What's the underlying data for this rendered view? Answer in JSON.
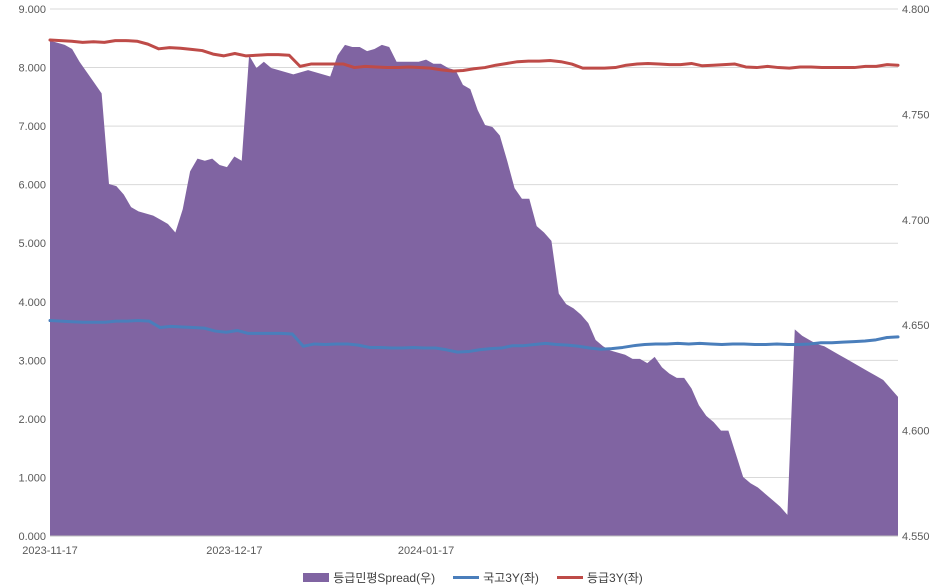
{
  "chart_data": {
    "type": "area+line",
    "title": "",
    "xlabel": "",
    "ylabel": "",
    "x_tick_labels": [
      "2023-11-17",
      "2023-12-17",
      "2024-01-17"
    ],
    "x_tick_index": [
      0,
      25,
      51
    ],
    "ylim_left": [
      0,
      9
    ],
    "left_ticks": [
      "0.000",
      "1.000",
      "2.000",
      "3.000",
      "4.000",
      "5.000",
      "6.000",
      "7.000",
      "8.000",
      "9.000"
    ],
    "ylim_right": [
      4.55,
      4.8
    ],
    "right_ticks": [
      "4.550",
      "4.600",
      "4.650",
      "4.700",
      "4.750",
      "4.800"
    ],
    "grid": "horizontal",
    "legend_position": "bottom",
    "series": [
      {
        "name": "등급민평Spread(우)",
        "kind": "area",
        "axis": "right",
        "color": "#8064a2",
        "values": [
          4.785,
          4.784,
          4.783,
          4.781,
          4.775,
          4.77,
          4.765,
          4.76,
          4.717,
          4.716,
          4.712,
          4.706,
          4.704,
          4.703,
          4.702,
          4.7,
          4.698,
          4.694,
          4.705,
          4.723,
          4.729,
          4.728,
          4.729,
          4.726,
          4.725,
          4.73,
          4.728,
          4.778,
          4.772,
          4.775,
          4.772,
          4.771,
          4.77,
          4.769,
          4.77,
          4.771,
          4.77,
          4.769,
          4.768,
          4.778,
          4.783,
          4.782,
          4.782,
          4.78,
          4.781,
          4.783,
          4.782,
          4.775,
          4.775,
          4.775,
          4.775,
          4.776,
          4.774,
          4.774,
          4.772,
          4.771,
          4.764,
          4.762,
          4.752,
          4.745,
          4.744,
          4.74,
          4.728,
          4.715,
          4.71,
          4.71,
          4.697,
          4.694,
          4.69,
          4.665,
          4.66,
          4.658,
          4.655,
          4.651,
          4.643,
          4.64,
          4.638,
          4.637,
          4.636,
          4.634,
          4.634,
          4.632,
          4.635,
          4.63,
          4.627,
          4.625,
          4.625,
          4.62,
          4.612,
          4.607,
          4.604,
          4.6,
          4.6,
          4.589,
          4.578,
          4.575,
          4.573,
          4.57,
          4.567,
          4.564,
          4.56,
          4.648,
          4.645,
          4.643,
          4.641,
          4.64,
          4.638,
          4.636,
          4.634,
          4.632,
          4.63,
          4.628,
          4.626,
          4.624,
          4.62,
          4.616
        ]
      },
      {
        "name": "국고3Y(좌)",
        "kind": "line",
        "axis": "left",
        "color": "#4a7ebb",
        "values": [
          3.68,
          3.67,
          3.66,
          3.65,
          3.65,
          3.65,
          3.67,
          3.67,
          3.68,
          3.67,
          3.56,
          3.58,
          3.57,
          3.56,
          3.55,
          3.5,
          3.48,
          3.51,
          3.46,
          3.46,
          3.46,
          3.46,
          3.45,
          3.24,
          3.28,
          3.27,
          3.28,
          3.28,
          3.26,
          3.22,
          3.22,
          3.21,
          3.21,
          3.22,
          3.21,
          3.21,
          3.18,
          3.14,
          3.15,
          3.18,
          3.2,
          3.21,
          3.25,
          3.25,
          3.27,
          3.29,
          3.27,
          3.26,
          3.24,
          3.21,
          3.19,
          3.2,
          3.22,
          3.25,
          3.27,
          3.28,
          3.28,
          3.29,
          3.28,
          3.29,
          3.28,
          3.27,
          3.28,
          3.28,
          3.27,
          3.27,
          3.28,
          3.27,
          3.27,
          3.28,
          3.3,
          3.3,
          3.31,
          3.32,
          3.33,
          3.35,
          3.39,
          3.4
        ]
      },
      {
        "name": "등급3Y(좌)",
        "kind": "line",
        "axis": "left",
        "color": "#be4b48",
        "values": [
          8.47,
          8.46,
          8.45,
          8.43,
          8.44,
          8.43,
          8.46,
          8.46,
          8.45,
          8.4,
          8.32,
          8.34,
          8.33,
          8.31,
          8.29,
          8.23,
          8.2,
          8.24,
          8.2,
          8.21,
          8.22,
          8.22,
          8.21,
          8.02,
          8.06,
          8.06,
          8.06,
          8.06,
          8.0,
          8.02,
          8.01,
          8.0,
          8.0,
          8.01,
          8.0,
          7.99,
          7.96,
          7.94,
          7.95,
          7.98,
          8.0,
          8.04,
          8.07,
          8.1,
          8.11,
          8.11,
          8.12,
          8.1,
          8.06,
          7.99,
          7.99,
          7.99,
          8.0,
          8.04,
          8.06,
          8.07,
          8.06,
          8.05,
          8.05,
          8.07,
          8.03,
          8.04,
          8.05,
          8.06,
          8.01,
          8.0,
          8.02,
          8.0,
          7.99,
          8.01,
          8.01,
          8.0,
          8.0,
          8.0,
          8.0,
          8.02,
          8.02,
          8.05,
          8.04
        ]
      }
    ]
  }
}
